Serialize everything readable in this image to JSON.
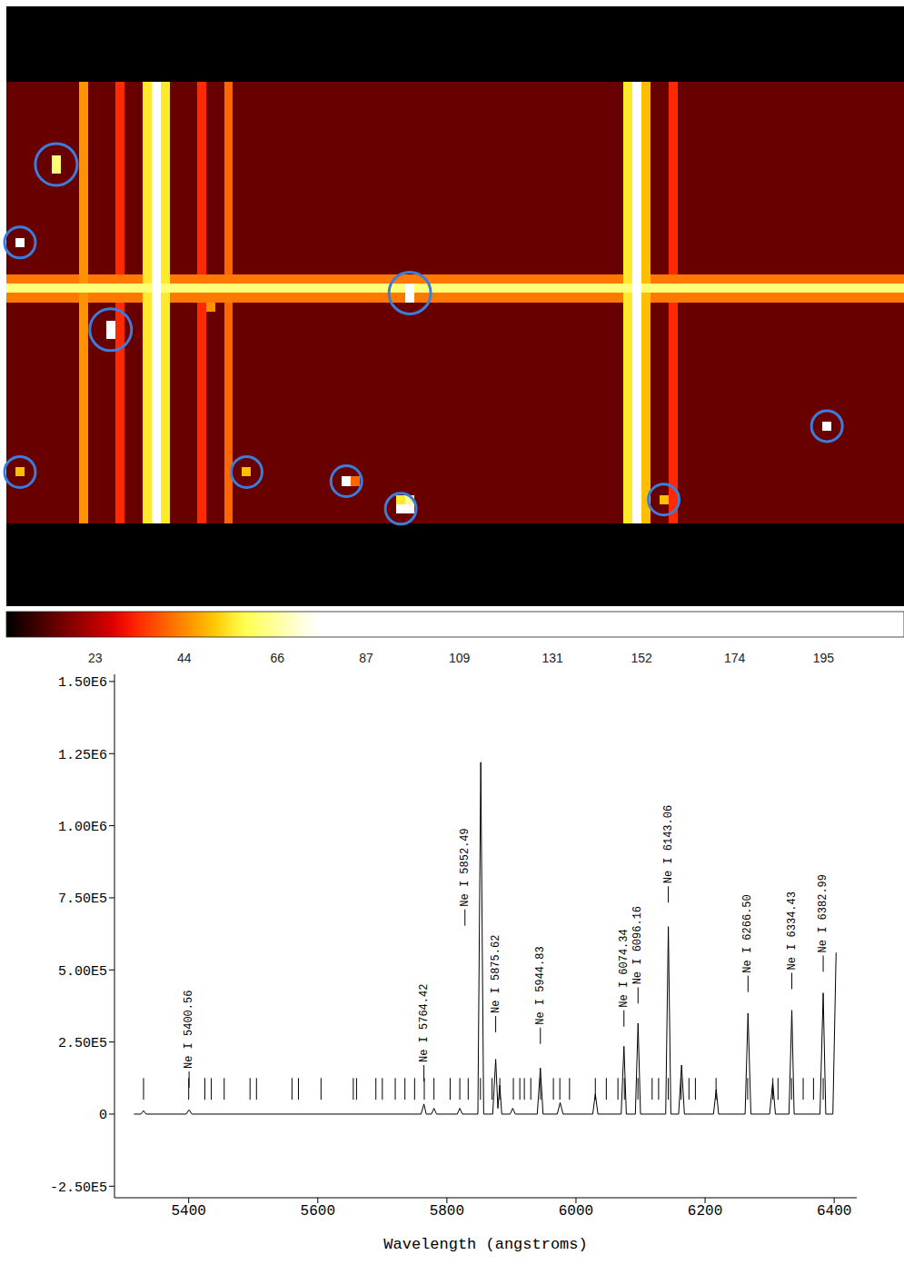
{
  "chart_data": [
    {
      "type": "heatmap",
      "columns": 99,
      "rows": 48,
      "background": 14,
      "bright_columns": [
        {
          "col": 8,
          "value": 45
        },
        {
          "col": 12,
          "value": 33
        },
        {
          "col": 15,
          "value": 55
        },
        {
          "col": 16,
          "value": 100
        },
        {
          "col": 17,
          "value": 55
        },
        {
          "col": 21,
          "value": 33
        },
        {
          "col": 24,
          "value": 40
        },
        {
          "col": 68,
          "value": 55
        },
        {
          "col": 69,
          "value": 100
        },
        {
          "col": 70,
          "value": 50
        },
        {
          "col": 73,
          "value": 33
        }
      ],
      "bright_rows": [
        {
          "row": 21,
          "value": 42
        },
        {
          "row": 22,
          "value": 62
        },
        {
          "row": 23,
          "value": 42
        }
      ],
      "hot_pixels": [
        {
          "col": 5,
          "row": 8,
          "span": 2,
          "value": 62,
          "circled": true
        },
        {
          "col": 1,
          "row": 17,
          "span": 1,
          "value": 120,
          "circled": true
        },
        {
          "col": 11,
          "row": 26,
          "span": 2,
          "value": 120,
          "circled": true
        },
        {
          "col": 44,
          "row": 22,
          "span": 2,
          "value": 120,
          "circled": true
        },
        {
          "col": 90,
          "row": 37,
          "span": 1,
          "value": 110,
          "circled": true
        },
        {
          "col": 1,
          "row": 42,
          "span": 1,
          "value": 50,
          "circled": true
        },
        {
          "col": 26,
          "row": 42,
          "span": 1,
          "value": 50,
          "circled": true
        },
        {
          "col": 37,
          "row": 43,
          "span": 1,
          "value": 120,
          "circled": true
        },
        {
          "col": 38,
          "row": 43,
          "span": 1,
          "value": 40,
          "circled": false
        },
        {
          "col": 43,
          "row": 45,
          "span": 1,
          "value": 55,
          "circled": false
        },
        {
          "col": 44,
          "row": 45,
          "span": 1,
          "value": 65,
          "circled": false
        },
        {
          "col": 43,
          "row": 46,
          "span": 1,
          "value": 120,
          "circled": true
        },
        {
          "col": 44,
          "row": 46,
          "span": 1,
          "value": 120,
          "circled": false
        },
        {
          "col": 72,
          "row": 45,
          "span": 1,
          "value": 50,
          "circled": true
        },
        {
          "col": 22,
          "row": 24,
          "span": 1,
          "value": 45,
          "circled": false
        }
      ],
      "display_max": 75,
      "colorbar_range": [
        2,
        214
      ],
      "colorbar_ticks": [
        23,
        44,
        66,
        87,
        109,
        131,
        152,
        174,
        195
      ]
    },
    {
      "type": "line",
      "color": "#000000",
      "x_label": "Wavelength (angstroms)",
      "x": [
        5315,
        5326,
        5330,
        5334,
        5396,
        5400.56,
        5405,
        5760,
        5764.42,
        5768,
        5776,
        5780,
        5784,
        5816,
        5820,
        5824,
        5848,
        5852.49,
        5857,
        5871,
        5875.62,
        5879,
        5881.9,
        5885,
        5898,
        5902,
        5906,
        5940,
        5944.83,
        5949,
        5971,
        5975.5,
        5980,
        6026,
        6030,
        6034,
        6070,
        6074.34,
        6078,
        6092,
        6096.16,
        6100,
        6139,
        6143.06,
        6147,
        6159,
        6163.6,
        6168,
        6213,
        6217.3,
        6221,
        6262,
        6266.5,
        6271,
        6300,
        6304.8,
        6309,
        6330,
        6334.43,
        6338,
        6378,
        6382.99,
        6387,
        6398,
        6403
      ],
      "values": [
        0,
        0,
        12000,
        0,
        0,
        15000,
        0,
        0,
        35000,
        0,
        0,
        20000,
        0,
        0,
        20000,
        0,
        0,
        1220000,
        0,
        0,
        190000,
        20000,
        100000,
        0,
        0,
        20000,
        0,
        0,
        160000,
        0,
        0,
        40000,
        0,
        0,
        70000,
        0,
        0,
        235000,
        0,
        0,
        315000,
        0,
        0,
        650000,
        0,
        0,
        170000,
        0,
        0,
        85000,
        0,
        0,
        350000,
        0,
        0,
        110000,
        0,
        0,
        360000,
        0,
        0,
        420000,
        0,
        0,
        560000
      ],
      "xlim": [
        5285,
        6435
      ],
      "xticks": [
        5400,
        5600,
        5800,
        6000,
        6200,
        6400
      ],
      "ylim": [
        -290000,
        1525000
      ],
      "yticks": [
        {
          "value": -250000,
          "label": "-2.50E5"
        },
        0,
        {
          "value": 250000,
          "label": "2.50E5"
        },
        {
          "value": 500000,
          "label": "5.00E5"
        },
        {
          "value": 750000,
          "label": "7.50E5"
        },
        {
          "value": 1000000,
          "label": "1.00E6"
        },
        {
          "value": 1250000,
          "label": "1.25E6"
        },
        {
          "value": 1500000,
          "label": "1.50E6"
        }
      ],
      "line_markers": [
        5330,
        5400,
        5425,
        5435,
        5455,
        5495,
        5505,
        5560,
        5570,
        5605,
        5655,
        5660,
        5690,
        5700,
        5720,
        5735,
        5750,
        5765,
        5780,
        5805,
        5820,
        5833,
        5852,
        5870,
        5882,
        5903,
        5913,
        5920,
        5930,
        5945,
        5965,
        5975,
        5990,
        6030,
        6047,
        6065,
        6075,
        6096,
        6118,
        6128,
        6143,
        6163,
        6175,
        6185,
        6217,
        6266,
        6305,
        6313,
        6334,
        6352,
        6368,
        6383
      ],
      "line_marker_range": [
        50000,
        125000
      ],
      "annotations": [
        {
          "text": "Ne I 5400.56",
          "x": 5400.56,
          "y": 148000
        },
        {
          "text": "Ne I 5764.42",
          "x": 5764.42,
          "y": 170000
        },
        {
          "text": "Ne I 5852.49",
          "x": 5828,
          "y": 710000
        },
        {
          "text": "Ne I 5875.62",
          "x": 5875.62,
          "y": 340000
        },
        {
          "text": "Ne I 5944.83",
          "x": 5944.83,
          "y": 300000
        },
        {
          "text": "Ne I 6074.34",
          "x": 6074.34,
          "y": 360000
        },
        {
          "text": "Ne I 6096.16",
          "x": 6096.16,
          "y": 440000
        },
        {
          "text": "Ne I 6143.06",
          "x": 6143.06,
          "y": 790000
        },
        {
          "text": "Ne I 6266.50",
          "x": 6266.5,
          "y": 480000
        },
        {
          "text": "Ne I 6334.43",
          "x": 6334.43,
          "y": 490000
        },
        {
          "text": "Ne I 6382.99",
          "x": 6382.99,
          "y": 550000
        }
      ]
    }
  ]
}
